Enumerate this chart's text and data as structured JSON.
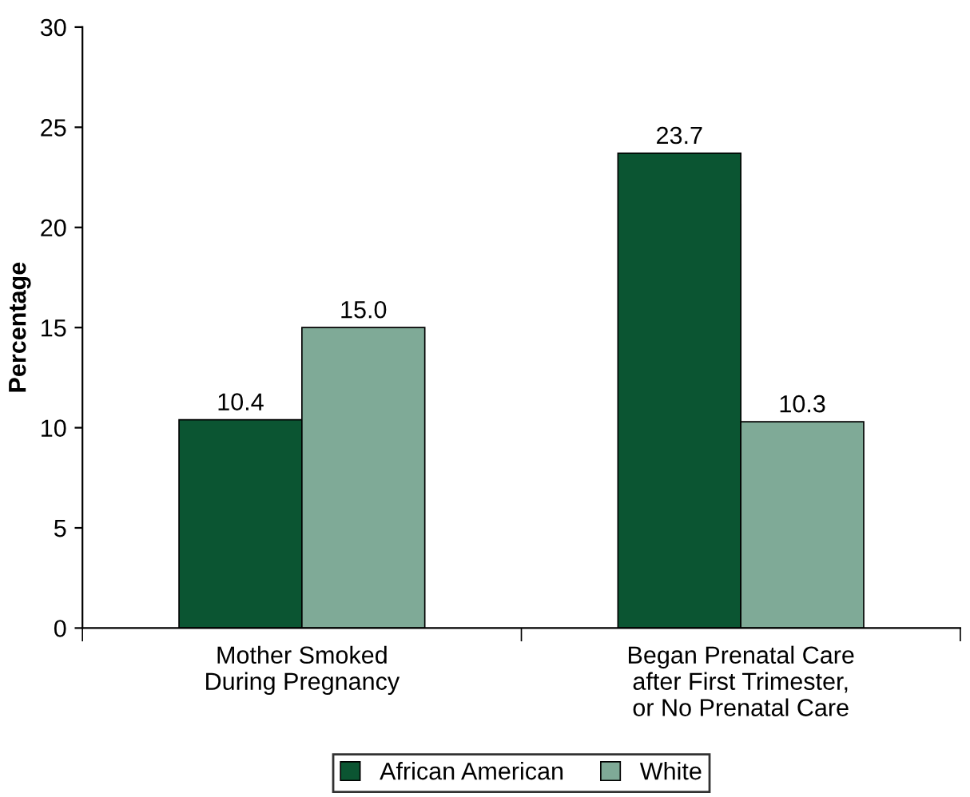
{
  "chart_data": {
    "type": "bar",
    "ylabel": "Percentage",
    "categories": [
      "Mother Smoked\nDuring Pregnancy",
      "Began Prenatal Care\nafter First Trimester,\nor No Prenatal Care"
    ],
    "series": [
      {
        "name": "African American",
        "color": "#0b5532",
        "values": [
          10.4,
          23.7
        ]
      },
      {
        "name": "White",
        "color": "#7faa97",
        "values": [
          15.0,
          10.3
        ]
      }
    ],
    "value_labels": [
      [
        "10.4",
        "23.7"
      ],
      [
        "15.0",
        "10.3"
      ]
    ],
    "ylim": [
      0,
      30
    ],
    "yticks": [
      0,
      5,
      10,
      15,
      20,
      25,
      30
    ],
    "grid": false,
    "legend": "bottom"
  }
}
